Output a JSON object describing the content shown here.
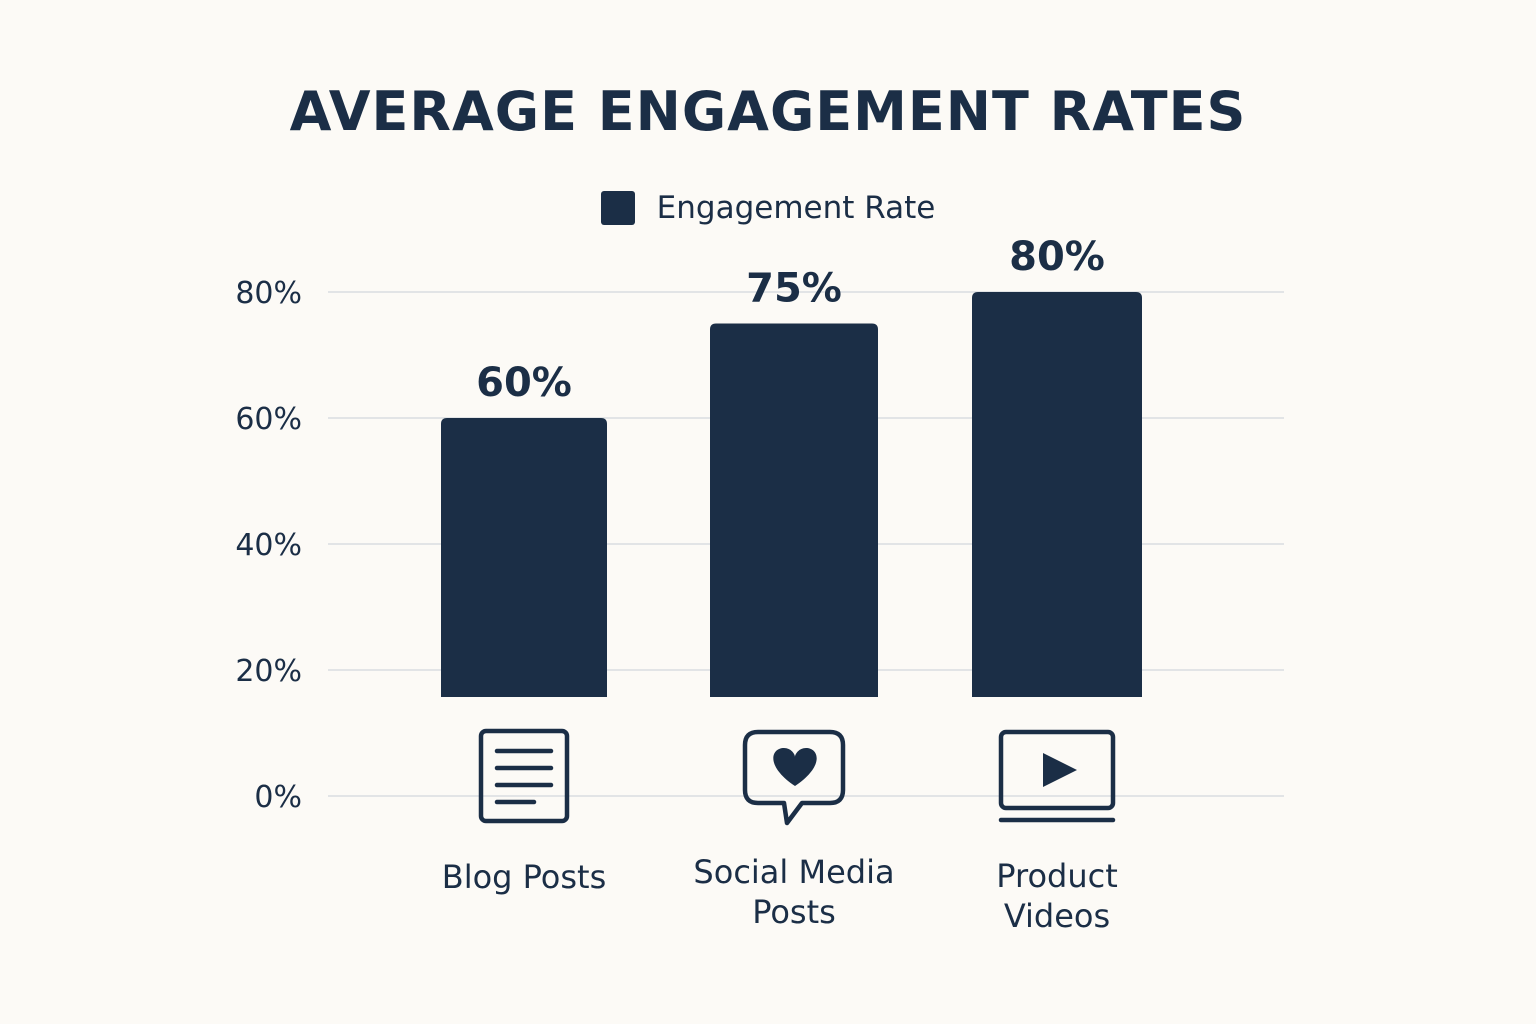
{
  "chart_data": {
    "type": "bar",
    "title": "AVERAGE ENGAGEMENT RATES",
    "legend": {
      "label": "Engagement Rate",
      "placement": "top-center"
    },
    "categories": [
      {
        "label_lines": [
          "Blog Posts"
        ],
        "icon": "document-icon"
      },
      {
        "label_lines": [
          "Social Media",
          "Posts"
        ],
        "icon": "heart-speech-bubble-icon"
      },
      {
        "label_lines": [
          "Product",
          "Videos"
        ],
        "icon": "video-play-icon"
      }
    ],
    "series": [
      {
        "name": "Engagement Rate",
        "values": [
          60,
          75,
          80
        ],
        "value_labels": [
          "60%",
          "75%",
          "80%"
        ]
      }
    ],
    "yticks": [
      "0%",
      "20%",
      "40%",
      "60%",
      "80%"
    ],
    "ytick_values": [
      0,
      20,
      40,
      60,
      80
    ],
    "ylim": [
      0,
      80
    ],
    "grid": true,
    "colors": {
      "bar": "#1b2e46",
      "grid": "#d9dde0",
      "text": "#1b2e46",
      "background": "#fcfaf6"
    }
  }
}
